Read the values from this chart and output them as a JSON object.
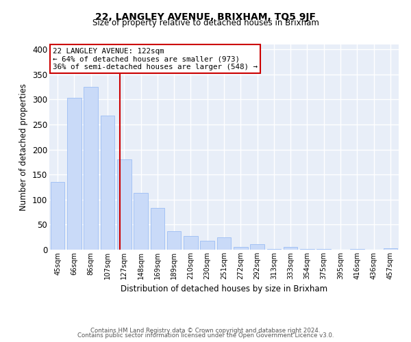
{
  "title": "22, LANGLEY AVENUE, BRIXHAM, TQ5 9JF",
  "subtitle": "Size of property relative to detached houses in Brixham",
  "xlabel": "Distribution of detached houses by size in Brixham",
  "ylabel": "Number of detached properties",
  "bins": [
    "45sqm",
    "66sqm",
    "86sqm",
    "107sqm",
    "127sqm",
    "148sqm",
    "169sqm",
    "189sqm",
    "210sqm",
    "230sqm",
    "251sqm",
    "272sqm",
    "292sqm",
    "313sqm",
    "333sqm",
    "354sqm",
    "375sqm",
    "395sqm",
    "416sqm",
    "436sqm",
    "457sqm"
  ],
  "values": [
    135,
    303,
    325,
    268,
    180,
    113,
    83,
    37,
    27,
    18,
    25,
    5,
    11,
    2,
    6,
    2,
    1,
    0,
    2,
    0,
    3
  ],
  "bar_color": "#c9daf8",
  "bar_edgecolor": "#a4c2f4",
  "vline_color": "#cc0000",
  "annotation_text": "22 LANGLEY AVENUE: 122sqm\n← 64% of detached houses are smaller (973)\n36% of semi-detached houses are larger (548) →",
  "annotation_box_edgecolor": "#cc0000",
  "ylim": [
    0,
    410
  ],
  "yticks": [
    0,
    50,
    100,
    150,
    200,
    250,
    300,
    350,
    400
  ],
  "background_color": "#ffffff",
  "plot_bg_color": "#e8eef8",
  "grid_color": "#ffffff",
  "footer_line1": "Contains HM Land Registry data © Crown copyright and database right 2024.",
  "footer_line2": "Contains public sector information licensed under the Open Government Licence v3.0."
}
